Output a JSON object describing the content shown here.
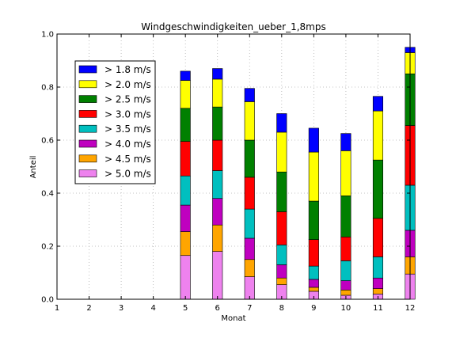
{
  "chart_data": {
    "type": "bar",
    "stacked": true,
    "title": "Windgeschwindigkeiten_ueber_1,8mps",
    "xlabel": "Monat",
    "ylabel": "Anteil",
    "xlim": [
      1,
      12
    ],
    "ylim": [
      0,
      1.0
    ],
    "xticks": [
      "1",
      "2",
      "3",
      "4",
      "5",
      "6",
      "7",
      "8",
      "9",
      "10",
      "11",
      "12"
    ],
    "yticks": [
      "0.0",
      "0.2",
      "0.4",
      "0.6",
      "0.8",
      "1.0"
    ],
    "grid": true,
    "legend_position": "upper-left",
    "categories": [
      5,
      6,
      7,
      8,
      9,
      10,
      11,
      12
    ],
    "series": [
      {
        "name": "> 5.0 m/s",
        "color": "#ee82ee",
        "values": [
          0.165,
          0.18,
          0.085,
          0.055,
          0.03,
          0.015,
          0.02,
          0.095
        ]
      },
      {
        "name": "> 4.5 m/s",
        "color": "#ffa500",
        "values": [
          0.09,
          0.1,
          0.065,
          0.025,
          0.015,
          0.02,
          0.02,
          0.065
        ]
      },
      {
        "name": "> 4.0 m/s",
        "color": "#bf00bf",
        "values": [
          0.1,
          0.1,
          0.08,
          0.05,
          0.03,
          0.035,
          0.04,
          0.1
        ]
      },
      {
        "name": "> 3.5 m/s",
        "color": "#00bfbf",
        "values": [
          0.11,
          0.105,
          0.11,
          0.075,
          0.05,
          0.075,
          0.08,
          0.17
        ]
      },
      {
        "name": "> 3.0 m/s",
        "color": "#ff0000",
        "values": [
          0.13,
          0.115,
          0.12,
          0.125,
          0.1,
          0.09,
          0.145,
          0.225
        ]
      },
      {
        "name": "> 2.5 m/s",
        "color": "#008000",
        "values": [
          0.125,
          0.125,
          0.14,
          0.15,
          0.145,
          0.155,
          0.22,
          0.195
        ]
      },
      {
        "name": "> 2.0 m/s",
        "color": "#ffff00",
        "values": [
          0.105,
          0.105,
          0.145,
          0.15,
          0.185,
          0.17,
          0.185,
          0.08
        ]
      },
      {
        "name": "> 1.8 m/s",
        "color": "#0000ff",
        "values": [
          0.035,
          0.04,
          0.05,
          0.07,
          0.09,
          0.065,
          0.055,
          0.02
        ]
      }
    ]
  }
}
